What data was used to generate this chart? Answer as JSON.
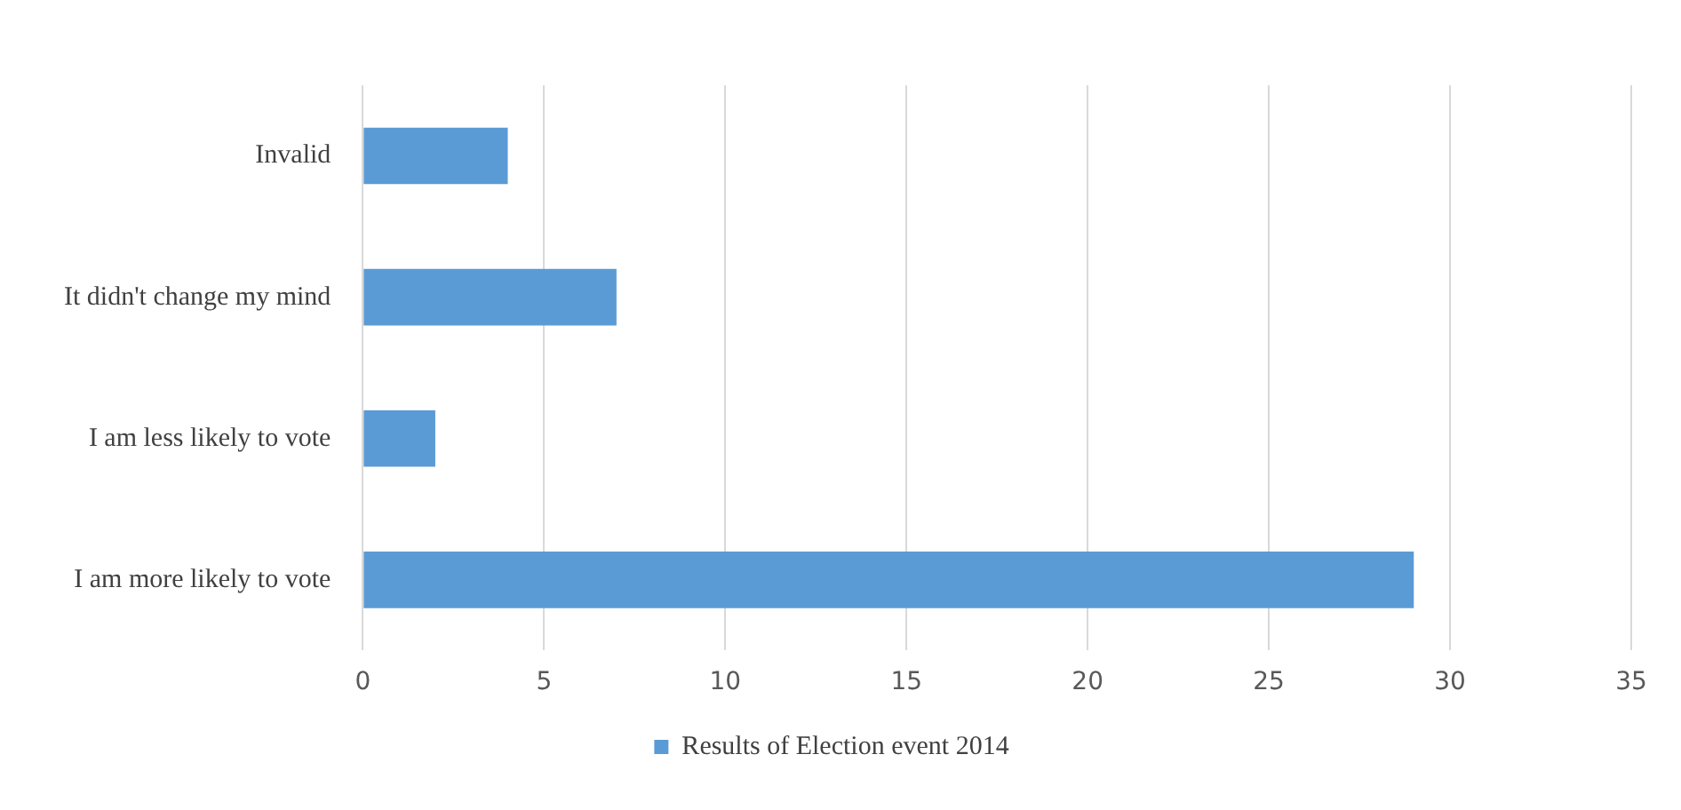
{
  "chart_data": {
    "type": "bar",
    "orientation": "horizontal",
    "categories": [
      "Invalid",
      "It didn't change my mind",
      "I am less likely to vote",
      "I am more likely to vote"
    ],
    "series": [
      {
        "name": "Results of Election event 2014",
        "color": "#5b9bd5",
        "values": [
          4,
          7,
          2,
          29
        ]
      }
    ],
    "xlim": [
      0,
      35
    ],
    "xticks": [
      0,
      5,
      10,
      15,
      20,
      25,
      30,
      35
    ],
    "grid": "x",
    "legend": "bottom"
  }
}
